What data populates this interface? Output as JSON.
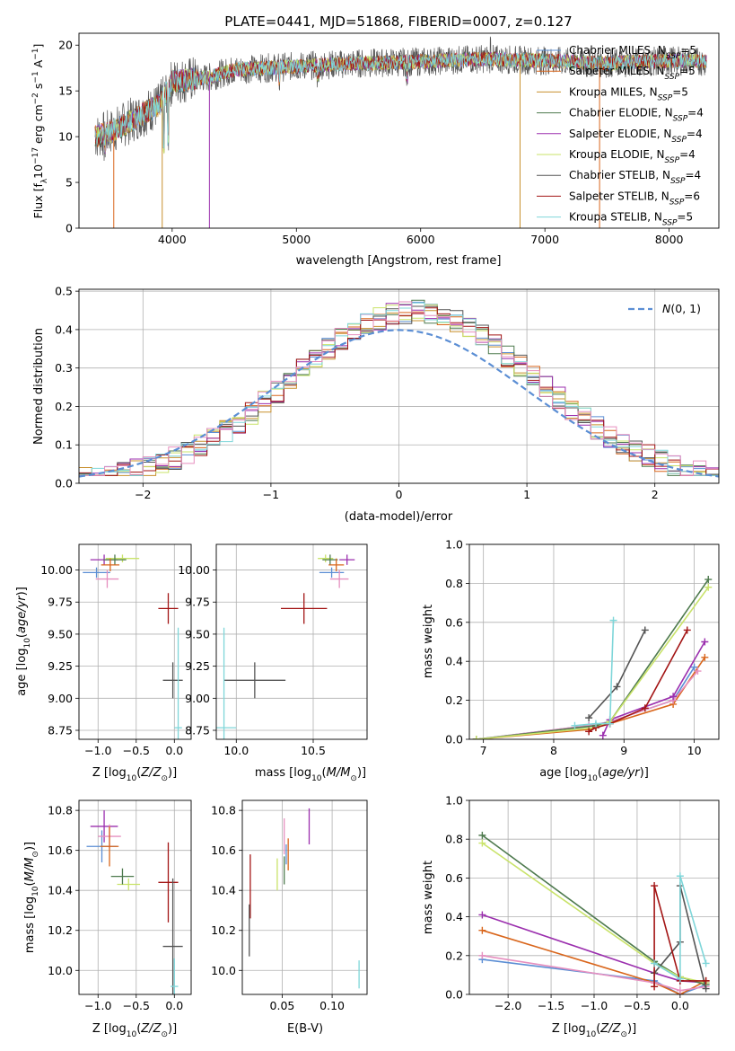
{
  "colors": {
    "Chabrier MILES": "#5b8ed4",
    "Salpeter MILES": "#d9661c",
    "Kroupa MILES": "#c8902e",
    "Chabrier ELODIE": "#4e7a4e",
    "Salpeter ELODIE": "#9b2fae",
    "Kroupa ELODIE": "#c9e36a",
    "Chabrier STELIB": "#555555",
    "Salpeter STELIB": "#a31515",
    "Kroupa STELIB": "#7fd6d9",
    "pink": "#e68fbf"
  },
  "chart_data": [
    {
      "id": "spectrum",
      "type": "line",
      "title": "PLATE=0441, MJD=51868, FIBERID=0007, z=0.127",
      "xlabel": "wavelength [Angstrom, rest frame]",
      "ylabel": "Flux [fλ10−17 erg cm−2 s−1 A−1]",
      "xlim": [
        3250,
        8400
      ],
      "ylim": [
        0,
        21.3
      ],
      "xticks": [
        4000,
        5000,
        6000,
        7000,
        8000
      ],
      "yticks": [
        0,
        5,
        10,
        15,
        20
      ],
      "legend_position": "top-right",
      "legend": [
        {
          "text": "Chabrier MILES, N_SSP=5",
          "color": "#5b8ed4"
        },
        {
          "text": "Salpeter MILES, N_SSP=5",
          "color": "#d9661c"
        },
        {
          "text": "Kroupa MILES, N_SSP=5",
          "color": "#c8902e"
        },
        {
          "text": "Chabrier ELODIE, N_SSP=4",
          "color": "#4e7a4e"
        },
        {
          "text": "Salpeter ELODIE, N_SSP=4",
          "color": "#9b2fae"
        },
        {
          "text": "Kroupa ELODIE, N_SSP=4",
          "color": "#c9e36a"
        },
        {
          "text": "Chabrier STELIB, N_SSP=4",
          "color": "#555555"
        },
        {
          "text": "Salpeter STELIB, N_SSP=6",
          "color": "#a31515"
        },
        {
          "text": "Kroupa STELIB, N_SSP=5",
          "color": "#7fd6d9"
        }
      ],
      "continuum": [
        [
          3380,
          10
        ],
        [
          3500,
          10.5
        ],
        [
          3700,
          12
        ],
        [
          3900,
          13.5
        ],
        [
          4000,
          16
        ],
        [
          4300,
          16.5
        ],
        [
          4500,
          17.3
        ],
        [
          5000,
          17.7
        ],
        [
          5500,
          18
        ],
        [
          6000,
          18.2
        ],
        [
          6500,
          18.5
        ],
        [
          7000,
          18.3
        ],
        [
          7500,
          18
        ],
        [
          8000,
          18.3
        ],
        [
          8300,
          18.2
        ]
      ],
      "dips": [
        [
          3530,
          0
        ],
        [
          3920,
          0
        ],
        [
          4300,
          0
        ],
        [
          6800,
          0
        ],
        [
          7440,
          0
        ]
      ]
    },
    {
      "id": "residuals",
      "type": "step",
      "xlabel": "(data-model)/error",
      "ylabel": "Normed distribution",
      "xlim": [
        -2.5,
        2.5
      ],
      "ylim": [
        0,
        0.505
      ],
      "xticks": [
        -2,
        -1,
        0,
        1,
        2
      ],
      "yticks": [
        0.0,
        0.1,
        0.2,
        0.3,
        0.4,
        0.5
      ],
      "legend_position": "top-right",
      "legend": [
        {
          "text": "N(0,1)",
          "color": "#5b8ed4",
          "dashed": true
        }
      ],
      "bin_width": 0.1
    },
    {
      "id": "age-vs-Z",
      "type": "errorbar",
      "xlabel": "Z [log10(Z/Z⊙)]",
      "ylabel": "age  [log10(age/yr)]",
      "xlim": [
        -1.25,
        0.22
      ],
      "ylim": [
        8.68,
        10.2
      ],
      "xticks": [
        -1.0,
        -0.5,
        0.0
      ],
      "yticks": [
        8.75,
        9.0,
        9.25,
        9.5,
        9.75,
        10.0
      ],
      "points": [
        {
          "color": "#a31515",
          "x": -0.08,
          "y": 9.7,
          "xerr": 0.13,
          "yerr": 0.12
        },
        {
          "color": "#555555",
          "x": -0.02,
          "y": 9.14,
          "xerr": 0.13,
          "yerr": 0.14
        },
        {
          "color": "#7fd6d9",
          "x": 0.05,
          "y": 8.77,
          "xerr": 0.05,
          "yerr": 0.78
        },
        {
          "color": "#9b2fae",
          "x": -0.92,
          "y": 10.08,
          "xerr": 0.18,
          "yerr": 0.04
        },
        {
          "color": "#c9e36a",
          "x": -0.68,
          "y": 10.09,
          "xerr": 0.22,
          "yerr": 0.03
        },
        {
          "color": "#4e7a4e",
          "x": -0.78,
          "y": 10.08,
          "xerr": 0.15,
          "yerr": 0.04
        },
        {
          "color": "#5b8ed4",
          "x": -1.02,
          "y": 9.98,
          "xerr": 0.18,
          "yerr": 0.04
        },
        {
          "color": "#e68fbf",
          "x": -0.88,
          "y": 9.93,
          "xerr": 0.15,
          "yerr": 0.07
        },
        {
          "color": "#d9661c",
          "x": -0.84,
          "y": 10.04,
          "xerr": 0.12,
          "yerr": 0.05
        }
      ]
    },
    {
      "id": "age-vs-mass",
      "type": "errorbar",
      "xlabel": "mass [log10(M/M⊙)]",
      "ylabel": "",
      "xlim": [
        9.87,
        10.85
      ],
      "ylim": [
        8.68,
        10.2
      ],
      "xticks": [
        10.0,
        10.5
      ],
      "yticks": [
        8.75,
        9.0,
        9.25,
        9.5,
        9.75,
        10.0
      ],
      "points": [
        {
          "color": "#a31515",
          "x": 10.44,
          "y": 9.7,
          "xerr": 0.15,
          "yerr": 0.12
        },
        {
          "color": "#555555",
          "x": 10.12,
          "y": 9.14,
          "xerr": 0.2,
          "yerr": 0.14
        },
        {
          "color": "#7fd6d9",
          "x": 9.92,
          "y": 8.77,
          "xerr": 0.08,
          "yerr": 0.78
        },
        {
          "color": "#9b2fae",
          "x": 10.72,
          "y": 10.08,
          "xerr": 0.05,
          "yerr": 0.04
        },
        {
          "color": "#c9e36a",
          "x": 10.58,
          "y": 10.09,
          "xerr": 0.05,
          "yerr": 0.03
        },
        {
          "color": "#4e7a4e",
          "x": 10.61,
          "y": 10.08,
          "xerr": 0.05,
          "yerr": 0.04
        },
        {
          "color": "#5b8ed4",
          "x": 10.62,
          "y": 9.98,
          "xerr": 0.08,
          "yerr": 0.04
        },
        {
          "color": "#e68fbf",
          "x": 10.67,
          "y": 9.93,
          "xerr": 0.06,
          "yerr": 0.07
        },
        {
          "color": "#d9661c",
          "x": 10.65,
          "y": 10.04,
          "xerr": 0.05,
          "yerr": 0.05
        }
      ]
    },
    {
      "id": "weight-vs-age",
      "type": "line",
      "xlabel": "age  [log10(age/yr)]",
      "ylabel": "mass weight",
      "xlim": [
        6.8,
        10.35
      ],
      "ylim": [
        0,
        1.0
      ],
      "xticks": [
        7,
        8,
        9,
        10
      ],
      "yticks": [
        0.0,
        0.2,
        0.4,
        0.6,
        0.8,
        1.0
      ],
      "series": [
        {
          "color": "#5b8ed4",
          "x": [
            6.9,
            8.5,
            8.8,
            9.7,
            10.0
          ],
          "y": [
            0.0,
            0.07,
            0.09,
            0.2,
            0.37
          ]
        },
        {
          "color": "#d9661c",
          "x": [
            6.9,
            8.5,
            8.8,
            9.7,
            10.15
          ],
          "y": [
            0.0,
            0.05,
            0.08,
            0.18,
            0.42
          ]
        },
        {
          "color": "#e68fbf",
          "x": [
            6.9,
            8.5,
            8.8,
            9.7,
            10.05
          ],
          "y": [
            0.0,
            0.07,
            0.09,
            0.2,
            0.35
          ]
        },
        {
          "color": "#9b2fae",
          "x": [
            8.7,
            8.8,
            9.7,
            10.15
          ],
          "y": [
            0.02,
            0.1,
            0.22,
            0.5
          ]
        },
        {
          "color": "#4e7a4e",
          "x": [
            6.9,
            8.6,
            8.8,
            10.2
          ],
          "y": [
            0.0,
            0.07,
            0.09,
            0.82
          ]
        },
        {
          "color": "#c9e36a",
          "x": [
            6.9,
            8.6,
            8.8,
            10.2
          ],
          "y": [
            0.0,
            0.06,
            0.09,
            0.78
          ]
        },
        {
          "color": "#555555",
          "x": [
            8.5,
            8.9,
            9.3
          ],
          "y": [
            0.11,
            0.27,
            0.56
          ]
        },
        {
          "color": "#a31515",
          "x": [
            8.5,
            8.6,
            8.8,
            9.3,
            9.9
          ],
          "y": [
            0.04,
            0.06,
            0.08,
            0.16,
            0.56
          ]
        },
        {
          "color": "#7fd6d9",
          "x": [
            8.3,
            8.6,
            8.8,
            8.85
          ],
          "y": [
            0.07,
            0.08,
            0.08,
            0.61
          ]
        }
      ]
    },
    {
      "id": "mass-vs-Z",
      "type": "errorbar",
      "xlabel": "Z [log10(Z/Z⊙)]",
      "ylabel": "mass [log10(M/M⊙)]",
      "xlim": [
        -1.25,
        0.22
      ],
      "ylim": [
        9.88,
        10.85
      ],
      "xticks": [
        -1.0,
        -0.5,
        0.0
      ],
      "yticks": [
        10.0,
        10.2,
        10.4,
        10.6,
        10.8
      ],
      "points": [
        {
          "color": "#a31515",
          "x": -0.08,
          "y": 10.44,
          "xerr": 0.13,
          "yerr": 0.2
        },
        {
          "color": "#555555",
          "x": -0.02,
          "y": 10.12,
          "xerr": 0.13,
          "yerr": 0.34
        },
        {
          "color": "#7fd6d9",
          "x": 0.0,
          "y": 9.92,
          "xerr": 0.05,
          "yerr": 0.14
        },
        {
          "color": "#9b2fae",
          "x": -0.92,
          "y": 10.72,
          "xerr": 0.18,
          "yerr": 0.08
        },
        {
          "color": "#c9e36a",
          "x": -0.6,
          "y": 10.43,
          "xerr": 0.15,
          "yerr": 0.03
        },
        {
          "color": "#4e7a4e",
          "x": -0.68,
          "y": 10.47,
          "xerr": 0.15,
          "yerr": 0.04
        },
        {
          "color": "#5b8ed4",
          "x": -0.95,
          "y": 10.62,
          "xerr": 0.2,
          "yerr": 0.08
        },
        {
          "color": "#e68fbf",
          "x": -0.85,
          "y": 10.67,
          "xerr": 0.15,
          "yerr": 0.06
        },
        {
          "color": "#d9661c",
          "x": -0.85,
          "y": 10.62,
          "xerr": 0.12,
          "yerr": 0.1
        }
      ]
    },
    {
      "id": "mass-vs-EBV",
      "type": "errorbar",
      "xlabel": "E(B-V)",
      "ylabel": "",
      "xlim": [
        0.01,
        0.135
      ],
      "ylim": [
        9.88,
        10.85
      ],
      "xticks": [
        0.05,
        0.1
      ],
      "yticks": [
        10.0,
        10.2,
        10.4,
        10.6,
        10.8
      ],
      "points": [
        {
          "color": "#a31515",
          "x": 0.018,
          "y": 10.42,
          "xerr": 0.0,
          "yerr": 0.16
        },
        {
          "color": "#555555",
          "x": 0.017,
          "y": 10.2,
          "xerr": 0.0,
          "yerr": 0.13
        },
        {
          "color": "#7fd6d9",
          "x": 0.127,
          "y": 9.98,
          "xerr": 0.0,
          "yerr": 0.07
        },
        {
          "color": "#9b2fae",
          "x": 0.077,
          "y": 10.72,
          "xerr": 0.0,
          "yerr": 0.09
        },
        {
          "color": "#c9e36a",
          "x": 0.045,
          "y": 10.48,
          "xerr": 0.0,
          "yerr": 0.08
        },
        {
          "color": "#4e7a4e",
          "x": 0.052,
          "y": 10.5,
          "xerr": 0.0,
          "yerr": 0.07
        },
        {
          "color": "#5b8ed4",
          "x": 0.054,
          "y": 10.58,
          "xerr": 0.0,
          "yerr": 0.05
        },
        {
          "color": "#e68fbf",
          "x": 0.052,
          "y": 10.67,
          "xerr": 0.0,
          "yerr": 0.09
        },
        {
          "color": "#d9661c",
          "x": 0.056,
          "y": 10.58,
          "xerr": 0.0,
          "yerr": 0.08
        }
      ]
    },
    {
      "id": "weight-vs-Z",
      "type": "line",
      "xlabel": "Z [log10(Z/Z⊙)]",
      "ylabel": "mass weight",
      "xlim": [
        -2.45,
        0.45
      ],
      "ylim": [
        0,
        1.0
      ],
      "xticks": [
        -2.0,
        -1.5,
        -1.0,
        -0.5,
        0.0
      ],
      "yticks": [
        0.0,
        0.2,
        0.4,
        0.6,
        0.8,
        1.0
      ],
      "series": [
        {
          "color": "#5b8ed4",
          "x": [
            -2.3,
            -0.3,
            0.0,
            0.3
          ],
          "y": [
            0.18,
            0.07,
            0.0,
            0.05
          ]
        },
        {
          "color": "#d9661c",
          "x": [
            -2.3,
            -0.3,
            0.0,
            0.3
          ],
          "y": [
            0.33,
            0.06,
            0.0,
            0.07
          ]
        },
        {
          "color": "#e68fbf",
          "x": [
            -2.3,
            -0.3,
            0.0,
            0.3
          ],
          "y": [
            0.2,
            0.06,
            0.02,
            0.04
          ]
        },
        {
          "color": "#9b2fae",
          "x": [
            -2.3,
            -0.3,
            0.0,
            0.3
          ],
          "y": [
            0.41,
            0.11,
            0.07,
            0.06
          ]
        },
        {
          "color": "#4e7a4e",
          "x": [
            -2.3,
            -0.3,
            0.0,
            0.3
          ],
          "y": [
            0.82,
            0.17,
            0.09,
            0.05
          ]
        },
        {
          "color": "#c9e36a",
          "x": [
            -2.3,
            -0.3,
            0.0,
            0.3
          ],
          "y": [
            0.78,
            0.16,
            0.09,
            0.06
          ]
        },
        {
          "color": "#555555",
          "x": [
            -0.3,
            0.0,
            0.0,
            0.3
          ],
          "y": [
            0.11,
            0.27,
            0.56,
            0.03
          ]
        },
        {
          "color": "#a31515",
          "x": [
            -0.3,
            -0.3,
            0.0,
            0.3
          ],
          "y": [
            0.04,
            0.56,
            0.07,
            0.07
          ]
        },
        {
          "color": "#7fd6d9",
          "x": [
            -0.3,
            0.0,
            0.0,
            0.3
          ],
          "y": [
            0.16,
            0.08,
            0.61,
            0.16
          ]
        }
      ]
    }
  ]
}
